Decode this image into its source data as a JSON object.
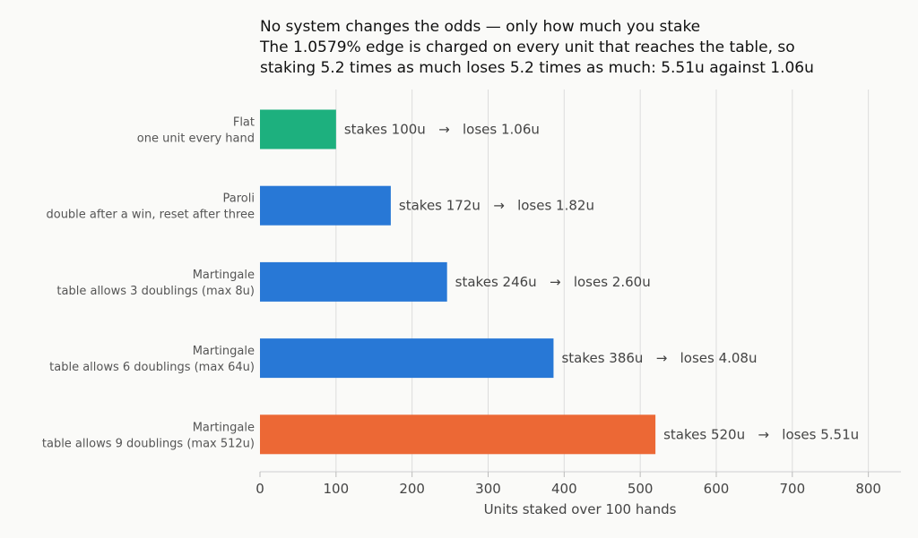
{
  "chart_data": {
    "type": "bar",
    "orientation": "horizontal",
    "title_lines": [
      "No system changes the odds — only how much you stake",
      "The 1.0579% edge is charged on every unit that reaches the table, so",
      "staking 5.2 times as much loses 5.2 times as much: 5.51u against 1.06u"
    ],
    "xlabel": "Units staked over 100 hands",
    "ylabel": "",
    "xlim": [
      0,
      845
    ],
    "xticks": [
      0,
      100,
      200,
      300,
      400,
      500,
      600,
      700,
      800
    ],
    "grid": "vertical",
    "bars": [
      {
        "name": "Flat",
        "description": "one unit every hand",
        "value": 100,
        "label": "stakes 100u   →   loses 1.06u",
        "color": "#1db07e"
      },
      {
        "name": "Paroli",
        "description": "double after a win, reset after three",
        "value": 172,
        "label": "stakes 172u   →   loses 1.82u",
        "color": "#2878d6"
      },
      {
        "name": "Martingale",
        "description": "table allows 3 doublings (max 8u)",
        "value": 246,
        "label": "stakes 246u   →   loses 2.60u",
        "color": "#2878d6"
      },
      {
        "name": "Martingale",
        "description": "table allows 6 doublings (max 64u)",
        "value": 386,
        "label": "stakes 386u   →   loses 4.08u",
        "color": "#2878d6"
      },
      {
        "name": "Martingale",
        "description": "table allows 9 doublings (max 512u)",
        "value": 520,
        "label": "stakes 520u   →   loses 5.51u",
        "color": "#ec6835"
      }
    ]
  }
}
